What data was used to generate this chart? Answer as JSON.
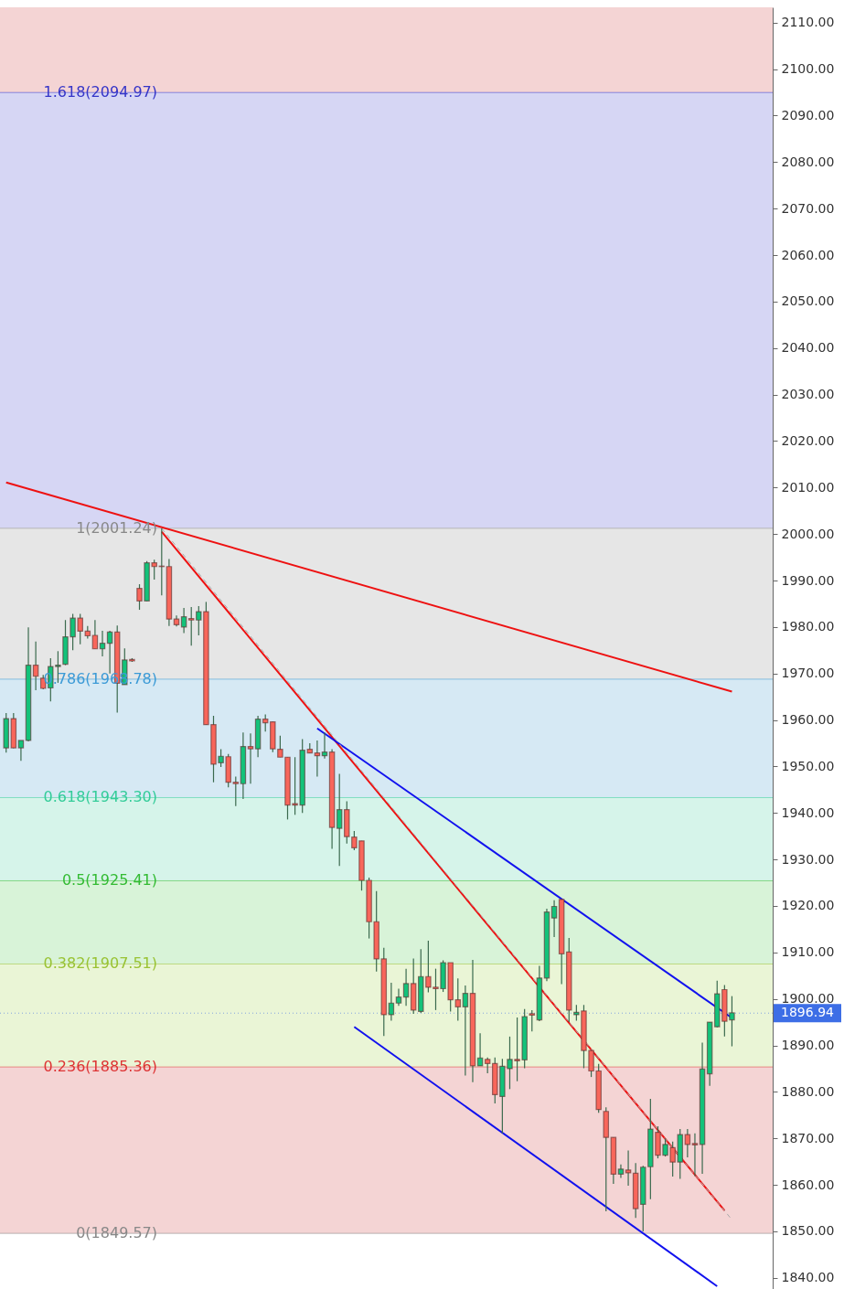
{
  "chart_data": {
    "type": "candlestick",
    "categories": [
      null,
      null,
      null,
      null,
      null,
      null,
      null,
      null,
      null,
      null,
      null,
      null,
      null,
      null,
      null,
      null,
      null,
      null,
      null,
      null,
      null,
      null,
      null,
      null,
      null,
      null,
      null,
      null,
      null,
      null,
      null,
      null,
      null,
      null,
      null,
      null,
      null,
      null,
      null,
      null,
      null,
      null,
      null,
      null,
      null,
      null,
      null,
      null,
      null,
      null,
      null,
      null,
      null,
      null,
      null,
      null,
      null,
      null,
      null,
      null,
      null,
      null,
      null,
      null,
      null,
      null,
      null,
      null,
      null,
      null,
      null,
      null,
      null,
      null,
      null,
      null,
      null,
      null,
      null,
      null,
      null,
      null,
      null,
      null,
      null,
      null,
      null,
      null,
      null,
      null,
      null,
      null,
      null,
      null,
      null,
      null,
      null,
      null,
      null
    ],
    "ohlc": [
      [
        1954.0,
        1961.5,
        1953.0,
        1960.3
      ],
      [
        1960.3,
        1961.5,
        1953.9,
        1954.0
      ],
      [
        1954.0,
        1955.6,
        1951.2,
        1955.6
      ],
      [
        1955.6,
        1979.9,
        1955.4,
        1971.8
      ],
      [
        1971.8,
        1976.9,
        1966.4,
        1969.4
      ],
      [
        1969.0,
        1969.7,
        1966.6,
        1966.8
      ],
      [
        1966.9,
        1973.3,
        1964.0,
        1971.5
      ],
      [
        1971.5,
        1974.8,
        1968.0,
        1971.8
      ],
      [
        1972.0,
        1981.5,
        1971.8,
        1977.9
      ],
      [
        1977.9,
        1982.8,
        1975.0,
        1981.9
      ],
      [
        1981.9,
        1982.8,
        1976.3,
        1979.1
      ],
      [
        1979.1,
        1980.2,
        1977.5,
        1978.1
      ],
      [
        1978.2,
        1981.5,
        1975.3,
        1975.3
      ],
      [
        1975.3,
        1979.2,
        1973.7,
        1976.5
      ],
      [
        1976.5,
        1979.2,
        1970.0,
        1978.9
      ],
      [
        1978.9,
        1980.3,
        1961.6,
        1967.9
      ],
      [
        1967.6,
        1975.4,
        1967.6,
        1972.9
      ],
      [
        1973.0,
        1973.3,
        1972.5,
        1972.7
      ],
      [
        1988.3,
        1989.2,
        1983.7,
        1985.6
      ],
      [
        1985.6,
        1994.2,
        1985.6,
        1993.8
      ],
      [
        1993.8,
        1994.5,
        1990.2,
        1993.0
      ],
      [
        1993.1,
        2001.2,
        1986.8,
        1993.0
      ],
      [
        1993.0,
        1994.6,
        1980.2,
        1981.7
      ],
      [
        1981.7,
        1982.5,
        1980.1,
        1980.5
      ],
      [
        1980.0,
        1984.1,
        1978.7,
        1982.2
      ],
      [
        1981.8,
        1984.3,
        1976.0,
        1981.5
      ],
      [
        1981.5,
        1984.5,
        1978.2,
        1983.3
      ],
      [
        1983.3,
        1985.4,
        1959.0,
        1959.0
      ],
      [
        1959.0,
        1960.9,
        1946.6,
        1950.5
      ],
      [
        1950.8,
        1953.7,
        1949.9,
        1952.2
      ],
      [
        1952.1,
        1952.7,
        1945.5,
        1946.6
      ],
      [
        1946.6,
        1947.8,
        1941.5,
        1946.3
      ],
      [
        1946.3,
        1957.3,
        1943.0,
        1954.3
      ],
      [
        1954.3,
        1957.1,
        1946.3,
        1953.8
      ],
      [
        1953.8,
        1960.9,
        1952.0,
        1960.2
      ],
      [
        1960.2,
        1961.2,
        1957.5,
        1959.4
      ],
      [
        1959.6,
        1959.6,
        1953.1,
        1953.8
      ],
      [
        1953.7,
        1956.6,
        1952.0,
        1952.0
      ],
      [
        1952.0,
        1952.0,
        1938.6,
        1941.7
      ],
      [
        1942.0,
        1952.0,
        1939.6,
        1941.7
      ],
      [
        1941.7,
        1955.9,
        1940.0,
        1953.5
      ],
      [
        1953.7,
        1955.0,
        1952.9,
        1952.9
      ],
      [
        1952.9,
        1955.6,
        1947.8,
        1952.3
      ],
      [
        1952.3,
        1957.3,
        1951.7,
        1953.1
      ],
      [
        1953.1,
        1953.7,
        1932.3,
        1936.9
      ],
      [
        1936.7,
        1948.4,
        1928.6,
        1940.7
      ],
      [
        1940.7,
        1942.5,
        1933.4,
        1934.9
      ],
      [
        1934.8,
        1936.1,
        1932.0,
        1932.5
      ],
      [
        1934.0,
        1934.0,
        1923.3,
        1925.5
      ],
      [
        1925.5,
        1926.1,
        1913.0,
        1916.6
      ],
      [
        1916.6,
        1923.2,
        1905.9,
        1908.6
      ],
      [
        1908.6,
        1911.0,
        1892.0,
        1896.6
      ],
      [
        1896.6,
        1903.5,
        1895.3,
        1899.1
      ],
      [
        1899.1,
        1902.2,
        1898.5,
        1900.4
      ],
      [
        1900.4,
        1906.5,
        1898.5,
        1903.3
      ],
      [
        1903.3,
        1908.7,
        1896.8,
        1897.6
      ],
      [
        1897.3,
        1910.7,
        1897.0,
        1904.8
      ],
      [
        1904.8,
        1912.5,
        1901.4,
        1902.5
      ],
      [
        1902.5,
        1906.5,
        1897.6,
        1902.2
      ],
      [
        1902.2,
        1908.3,
        1901.5,
        1907.8
      ],
      [
        1907.8,
        1907.8,
        1897.3,
        1899.8
      ],
      [
        1899.8,
        1904.4,
        1895.3,
        1898.3
      ],
      [
        1898.3,
        1902.9,
        1883.5,
        1901.2
      ],
      [
        1901.2,
        1908.4,
        1882.1,
        1885.6
      ],
      [
        1885.6,
        1892.6,
        1885.6,
        1887.3
      ],
      [
        1887.0,
        1887.4,
        1884.0,
        1886.1
      ],
      [
        1886.1,
        1887.4,
        1877.5,
        1879.4
      ],
      [
        1879.0,
        1887.1,
        1871.1,
        1885.5
      ],
      [
        1885.0,
        1891.9,
        1880.6,
        1887.0
      ],
      [
        1887.0,
        1896.0,
        1882.3,
        1886.7
      ],
      [
        1886.9,
        1897.8,
        1885.1,
        1896.2
      ],
      [
        1896.8,
        1897.6,
        1893.0,
        1896.5
      ],
      [
        1895.5,
        1907.1,
        1895.2,
        1904.5
      ],
      [
        1904.5,
        1919.4,
        1903.8,
        1918.7
      ],
      [
        1917.4,
        1921.2,
        1913.3,
        1919.9
      ],
      [
        1921.4,
        1921.4,
        1903.2,
        1909.7
      ],
      [
        1910.1,
        1913.1,
        1895.0,
        1897.6
      ],
      [
        1896.6,
        1898.7,
        1895.3,
        1897.1
      ],
      [
        1897.4,
        1898.7,
        1885.1,
        1888.9
      ],
      [
        1888.9,
        1888.9,
        1883.2,
        1884.5
      ],
      [
        1884.5,
        1886.0,
        1875.5,
        1876.2
      ],
      [
        1875.8,
        1876.7,
        1854.3,
        1870.2
      ],
      [
        1870.2,
        1870.2,
        1860.2,
        1862.3
      ],
      [
        1862.3,
        1864.4,
        1861.5,
        1863.4
      ],
      [
        1863.2,
        1867.4,
        1859.8,
        1862.6
      ],
      [
        1862.5,
        1864.7,
        1852.9,
        1854.9
      ],
      [
        1855.8,
        1864.1,
        1850.0,
        1863.8
      ],
      [
        1863.9,
        1878.5,
        1856.9,
        1872.0
      ],
      [
        1871.3,
        1872.6,
        1865.7,
        1866.4
      ],
      [
        1866.4,
        1870.0,
        1866.1,
        1868.7
      ],
      [
        1868.0,
        1869.3,
        1861.8,
        1864.9
      ],
      [
        1864.9,
        1872.0,
        1861.3,
        1870.8
      ],
      [
        1870.8,
        1872.0,
        1865.9,
        1868.7
      ],
      [
        1868.9,
        1871.1,
        1861.9,
        1868.6
      ],
      [
        1868.7,
        1890.6,
        1862.4,
        1884.9
      ],
      [
        1883.9,
        1895.0,
        1881.3,
        1895.0
      ],
      [
        1894.0,
        1903.9,
        1893.9,
        1901.1
      ],
      [
        1902.0,
        1903.0,
        1891.9,
        1895.2
      ],
      [
        1895.5,
        1900.6,
        1889.8,
        1897.0
      ]
    ],
    "colors": [
      "#13c27a",
      "#f8665b",
      "#13c27a",
      "#13c27a",
      "#f8665b",
      "#f8665b",
      "#13c27a",
      "#13c27a",
      "#13c27a",
      "#13c27a",
      "#f8665b",
      "#f8665b",
      "#f8665b",
      "#13c27a",
      "#13c27a",
      "#f8665b",
      "#13c27a",
      "#f8665b",
      "#f8665b",
      "#13c27a",
      "#f8665b",
      "#f8665b",
      "#f8665b",
      "#f8665b",
      "#13c27a",
      "#f8665b",
      "#13c27a",
      "#f8665b",
      "#f8665b",
      "#13c27a",
      "#f8665b",
      "#f8665b",
      "#13c27a",
      "#f8665b",
      "#13c27a",
      "#f8665b",
      "#f8665b",
      "#f8665b",
      "#f8665b",
      "#f8665b",
      "#13c27a",
      "#f8665b",
      "#f8665b",
      "#13c27a",
      "#f8665b",
      "#13c27a",
      "#f8665b",
      "#f8665b",
      "#f8665b",
      "#f8665b",
      "#f8665b",
      "#f8665b",
      "#13c27a",
      "#13c27a",
      "#13c27a",
      "#f8665b",
      "#13c27a",
      "#f8665b",
      "#f8665b",
      "#13c27a",
      "#f8665b",
      "#f8665b",
      "#13c27a",
      "#f8665b",
      "#13c27a",
      "#f8665b",
      "#f8665b",
      "#13c27a",
      "#13c27a",
      "#f8665b",
      "#13c27a",
      "#f8665b",
      "#13c27a",
      "#13c27a",
      "#13c27a",
      "#f8665b",
      "#f8665b",
      "#13c27a",
      "#f8665b",
      "#f8665b",
      "#f8665b",
      "#f8665b",
      "#f8665b",
      "#13c27a",
      "#f8665b",
      "#f8665b",
      "#13c27a",
      "#13c27a",
      "#f8665b",
      "#13c27a",
      "#f8665b",
      "#13c27a",
      "#f8665b",
      "#f8665b",
      "#13c27a",
      "#13c27a",
      "#13c27a",
      "#f8665b",
      "#13c27a"
    ],
    "series": [
      {
        "type": "line",
        "color": "#ee1111",
        "line_style": "solid",
        "values": [
          2011.1,
          null,
          null,
          null,
          null,
          null,
          null,
          null,
          null,
          null,
          null,
          null,
          null,
          null,
          null,
          null,
          null,
          null,
          null,
          null,
          null,
          null,
          null,
          null,
          null,
          null,
          null,
          null,
          null,
          null,
          null,
          null,
          null,
          null,
          null,
          null,
          null,
          null,
          null,
          null,
          null,
          null,
          null,
          null,
          null,
          null,
          null,
          null,
          null,
          null,
          null,
          null,
          null,
          null,
          null,
          null,
          null,
          null,
          null,
          null,
          null,
          null,
          null,
          null,
          null,
          null,
          null,
          null,
          null,
          null,
          null,
          null,
          null,
          null,
          null,
          null,
          null,
          null,
          null,
          null,
          null,
          null,
          null,
          null,
          null,
          null,
          null,
          null,
          null,
          null,
          null,
          null,
          null,
          null,
          null,
          null,
          null,
          null,
          1966.1
        ]
      },
      {
        "type": "line",
        "color": "#ee1111",
        "line_style": "solid",
        "values": [
          null,
          null,
          null,
          null,
          null,
          null,
          null,
          null,
          null,
          null,
          null,
          null,
          null,
          null,
          null,
          null,
          null,
          null,
          null,
          null,
          null,
          2000.5,
          null,
          null,
          null,
          null,
          null,
          null,
          null,
          null,
          null,
          null,
          null,
          null,
          null,
          null,
          null,
          null,
          null,
          null,
          null,
          null,
          null,
          null,
          null,
          null,
          null,
          null,
          null,
          null,
          null,
          null,
          null,
          null,
          null,
          null,
          null,
          null,
          null,
          null,
          null,
          null,
          null,
          null,
          null,
          null,
          null,
          null,
          null,
          null,
          null,
          null,
          null,
          null,
          null,
          null,
          null,
          null,
          null,
          null,
          null,
          null,
          null,
          null,
          null,
          null,
          null,
          null,
          null,
          null,
          null,
          null,
          null,
          null,
          null,
          null,
          null,
          1854.5,
          null
        ]
      },
      {
        "type": "line",
        "color": "#1111ee",
        "line_style": "solid",
        "values": [
          null,
          null,
          null,
          null,
          null,
          null,
          null,
          null,
          null,
          null,
          null,
          null,
          null,
          null,
          null,
          null,
          null,
          null,
          null,
          null,
          null,
          null,
          null,
          null,
          null,
          null,
          null,
          null,
          null,
          null,
          null,
          null,
          null,
          null,
          null,
          null,
          null,
          null,
          null,
          null,
          null,
          null,
          1958.2,
          null,
          null,
          null,
          null,
          null,
          null,
          null,
          null,
          null,
          null,
          null,
          null,
          null,
          null,
          null,
          null,
          null,
          null,
          null,
          null,
          null,
          null,
          null,
          null,
          null,
          null,
          null,
          null,
          null,
          null,
          null,
          null,
          null,
          null,
          null,
          null,
          null,
          null,
          null,
          null,
          null,
          null,
          null,
          null,
          null,
          null,
          null,
          null,
          null,
          null,
          null,
          null,
          null,
          null,
          null,
          1895.9
        ]
      },
      {
        "type": "line",
        "color": "#1111ee",
        "line_style": "solid",
        "values": [
          null,
          null,
          null,
          null,
          null,
          null,
          null,
          null,
          null,
          null,
          null,
          null,
          null,
          null,
          null,
          null,
          null,
          null,
          null,
          null,
          null,
          null,
          null,
          null,
          null,
          null,
          null,
          null,
          null,
          null,
          null,
          null,
          null,
          null,
          null,
          null,
          null,
          null,
          null,
          null,
          null,
          null,
          null,
          null,
          null,
          null,
          null,
          1894.0,
          null,
          null,
          null,
          null,
          null,
          null,
          null,
          null,
          null,
          null,
          null,
          null,
          null,
          null,
          null,
          null,
          null,
          null,
          null,
          null,
          null,
          null,
          null,
          null,
          null,
          null,
          null,
          null,
          null,
          null,
          null,
          null,
          null,
          null,
          null,
          null,
          null,
          null,
          null,
          null,
          null,
          null,
          null,
          null,
          null,
          null,
          null,
          null,
          1838.2,
          null,
          null
        ]
      },
      {
        "type": "line",
        "color": "#aaaaaa",
        "line_style": "dashed",
        "values": [
          null,
          null,
          null,
          null,
          null,
          null,
          null,
          null,
          null,
          null,
          null,
          null,
          null,
          null,
          null,
          null,
          null,
          null,
          null,
          null,
          null,
          2001.2,
          null,
          null,
          null,
          null,
          null,
          null,
          null,
          null,
          null,
          null,
          null,
          null,
          null,
          null,
          null,
          null,
          null,
          null,
          null,
          null,
          null,
          null,
          null,
          null,
          null,
          null,
          null,
          null,
          null,
          null,
          null,
          null,
          null,
          null,
          null,
          null,
          null,
          null,
          null,
          null,
          null,
          null,
          null,
          null,
          null,
          null,
          null,
          null,
          null,
          null,
          null,
          null,
          null,
          null,
          null,
          null,
          null,
          null,
          null,
          null,
          null,
          null,
          null,
          null,
          null,
          null,
          null,
          null,
          null,
          null,
          null,
          null,
          null,
          null,
          null,
          null,
          1852.5
        ]
      }
    ],
    "bands": [
      {
        "axis": "y",
        "from": 2094.97,
        "to": 2113.3,
        "color": "#f4d4d4"
      },
      {
        "axis": "y",
        "from": 2001.24,
        "to": 2094.97,
        "color": "#d6d6f4"
      },
      {
        "axis": "y",
        "from": 1968.78,
        "to": 2001.24,
        "color": "#e6e6e6"
      },
      {
        "axis": "y",
        "from": 1943.3,
        "to": 1968.78,
        "color": "#d6e9f4"
      },
      {
        "axis": "y",
        "from": 1925.41,
        "to": 1943.3,
        "color": "#d6f4ea"
      },
      {
        "axis": "y",
        "from": 1907.51,
        "to": 1925.41,
        "color": "#d8f3d8"
      },
      {
        "axis": "y",
        "from": 1885.36,
        "to": 1907.51,
        "color": "#eaf5d6"
      },
      {
        "axis": "y",
        "from": 1849.57,
        "to": 1885.36,
        "color": "#f4d4d4"
      }
    ],
    "ref_lines": [
      {
        "axis": "y",
        "value": 2094.97,
        "label": "1.618(2094.97)",
        "color": "#3535c8",
        "line_style": "solid"
      },
      {
        "axis": "y",
        "value": 2001.24,
        "label": "1(2001.24)",
        "color": "#888888",
        "line_style": "solid"
      },
      {
        "axis": "y",
        "value": 1968.78,
        "label": "0.786(1968.78)",
        "color": "#3b9ad6",
        "line_style": "solid"
      },
      {
        "axis": "y",
        "value": 1943.3,
        "label": "0.618(1943.30)",
        "color": "#33cc99",
        "line_style": "solid"
      },
      {
        "axis": "y",
        "value": 1925.41,
        "label": "0.5(1925.41)",
        "color": "#33bb33",
        "line_style": "solid"
      },
      {
        "axis": "y",
        "value": 1907.51,
        "label": "0.382(1907.51)",
        "color": "#99c233",
        "line_style": "solid"
      },
      {
        "axis": "y",
        "value": 1885.36,
        "label": "0.236(1885.36)",
        "color": "#dd3333",
        "line_style": "solid"
      },
      {
        "axis": "y",
        "value": 1849.57,
        "label": "0(1849.57)",
        "color": "#888888",
        "line_style": "solid"
      },
      {
        "axis": "y",
        "value": 1896.94,
        "label": "1896.94",
        "color": "#3d6ee6",
        "line_style": "dotted"
      }
    ],
    "ylim": [
      1837.6,
      2113.3
    ],
    "yticks": [
      {
        "value": 1840,
        "label": "1840.00"
      },
      {
        "value": 1850,
        "label": "1850.00"
      },
      {
        "value": 1860,
        "label": "1860.00"
      },
      {
        "value": 1870,
        "label": "1870.00"
      },
      {
        "value": 1880,
        "label": "1880.00"
      },
      {
        "value": 1890,
        "label": "1890.00"
      },
      {
        "value": 1900,
        "label": "1900.00"
      },
      {
        "value": 1910,
        "label": "1910.00"
      },
      {
        "value": 1920,
        "label": "1920.00"
      },
      {
        "value": 1930,
        "label": "1930.00"
      },
      {
        "value": 1940,
        "label": "1940.00"
      },
      {
        "value": 1950,
        "label": "1950.00"
      },
      {
        "value": 1960,
        "label": "1960.00"
      },
      {
        "value": 1970,
        "label": "1970.00"
      },
      {
        "value": 1980,
        "label": "1980.00"
      },
      {
        "value": 1990,
        "label": "1990.00"
      },
      {
        "value": 2000,
        "label": "2000.00"
      },
      {
        "value": 2010,
        "label": "2010.00"
      },
      {
        "value": 2020,
        "label": "2020.00"
      },
      {
        "value": 2030,
        "label": "2030.00"
      },
      {
        "value": 2040,
        "label": "2040.00"
      },
      {
        "value": 2050,
        "label": "2050.00"
      },
      {
        "value": 2060,
        "label": "2060.00"
      },
      {
        "value": 2070,
        "label": "2070.00"
      },
      {
        "value": 2080,
        "label": "2080.00"
      },
      {
        "value": 2090,
        "label": "2090.00"
      },
      {
        "value": 2100,
        "label": "2100.00"
      },
      {
        "value": 2110,
        "label": "2110.00"
      }
    ],
    "grid": false,
    "tick_labels": "y"
  }
}
